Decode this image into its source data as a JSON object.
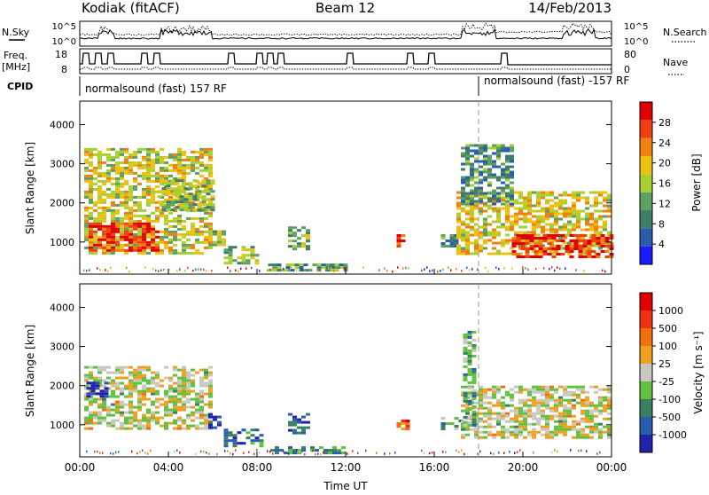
{
  "header": {
    "station": "Kodiak (fitACF)",
    "beam": "Beam 12",
    "date": "14/Feb/2013"
  },
  "params": {
    "nsky_label": "N.Sky",
    "nsearch_label": "N.Search",
    "noise_ticks": [
      "10^5",
      "10^0"
    ],
    "freq_label_1": "Freq.",
    "freq_label_2": "[MHz]",
    "freq_ticks": [
      "18",
      "8"
    ],
    "nave_label": "Nave",
    "nave_ticks": [
      "80",
      "0"
    ],
    "cpid_label": "CPID",
    "cpid_1": "normalsound (fast) 157 RF",
    "cpid_2": "normalsound (fast) -157 RF"
  },
  "colors": {
    "power": [
      "#1a1aff",
      "#2a5cb0",
      "#3f7d6b",
      "#5fa060",
      "#a8d030",
      "#f0c010",
      "#f08010",
      "#f04010",
      "#e00000"
    ],
    "velocity": [
      "#2222aa",
      "#2a5cb0",
      "#3a8060",
      "#60c040",
      "#c8c8c0",
      "#f0a020",
      "#f07010",
      "#f03010",
      "#e00000"
    ]
  },
  "chart_data": [
    {
      "type": "heatmap",
      "panel": "power",
      "ylabel": "Slant Range [km]",
      "yticks": [
        "4000",
        "3000",
        "2000",
        "1000"
      ],
      "ylim": [
        180,
        4600
      ],
      "xlim": [
        0,
        24
      ],
      "xtick_hours": [
        0,
        4,
        8,
        12,
        16,
        20,
        24
      ],
      "colorbar_label": "Power [dB]",
      "colorbar_ticks": [
        "28",
        "24",
        "20",
        "16",
        "12",
        "8",
        "4"
      ],
      "colorbar_range": [
        0,
        30
      ],
      "cpid_change_hour": 18,
      "regions": [
        {
          "t0": 0.2,
          "t1": 6.0,
          "r0": 700,
          "r1": 3400,
          "level": 0.55
        },
        {
          "t0": 0.4,
          "t1": 3.6,
          "r0": 800,
          "r1": 1500,
          "level": 0.9
        },
        {
          "t0": 3.5,
          "t1": 6.0,
          "r0": 1800,
          "r1": 2600,
          "level": 0.45
        },
        {
          "t0": 5.8,
          "t1": 6.5,
          "r0": 900,
          "r1": 1300,
          "level": 0.45
        },
        {
          "t0": 6.5,
          "t1": 8.0,
          "r0": 450,
          "r1": 900,
          "level": 0.45
        },
        {
          "t0": 8.5,
          "t1": 12.0,
          "r0": 250,
          "r1": 450,
          "level": 0.35
        },
        {
          "t0": 9.4,
          "t1": 10.4,
          "r0": 800,
          "r1": 1400,
          "level": 0.4
        },
        {
          "t0": 14.3,
          "t1": 14.7,
          "r0": 900,
          "r1": 1200,
          "level": 0.8
        },
        {
          "t0": 16.3,
          "t1": 17.0,
          "r0": 900,
          "r1": 1200,
          "level": 0.3
        },
        {
          "t0": 17.0,
          "t1": 24.0,
          "r0": 700,
          "r1": 2300,
          "level": 0.6
        },
        {
          "t0": 19.5,
          "t1": 24.0,
          "r0": 650,
          "r1": 1200,
          "level": 0.9
        },
        {
          "t0": 17.2,
          "t1": 19.5,
          "r0": 2000,
          "r1": 3500,
          "level": 0.3
        }
      ]
    },
    {
      "type": "heatmap",
      "panel": "velocity",
      "ylabel": "Slant Range [km]",
      "yticks": [
        "4000",
        "3000",
        "2000",
        "1000"
      ],
      "ylim": [
        180,
        4600
      ],
      "xlim": [
        0,
        24
      ],
      "xtick_labels": [
        "00:00",
        "04:00",
        "08:00",
        "12:00",
        "16:00",
        "20:00",
        "00:00"
      ],
      "xlabel": "Time UT",
      "colorbar_label": "Velocity [m s⁻¹]",
      "colorbar_ticks": [
        "1000",
        "500",
        "100",
        "25",
        "-25",
        "-100",
        "-500",
        "-1000"
      ],
      "colorbar_range": [
        -1000,
        1000
      ],
      "cpid_change_hour": 18,
      "regions": [
        {
          "t0": 0.2,
          "t1": 6.0,
          "r0": 900,
          "r1": 2500,
          "level": 0.5
        },
        {
          "t0": 0.3,
          "t1": 1.2,
          "r0": 1700,
          "r1": 2100,
          "level": 0.05
        },
        {
          "t0": 5.8,
          "t1": 6.6,
          "r0": 900,
          "r1": 1300,
          "level": 0.1
        },
        {
          "t0": 6.5,
          "t1": 8.3,
          "r0": 450,
          "r1": 900,
          "level": 0.25
        },
        {
          "t0": 8.6,
          "t1": 12.0,
          "r0": 250,
          "r1": 450,
          "level": 0.3
        },
        {
          "t0": 9.4,
          "t1": 10.4,
          "r0": 800,
          "r1": 1300,
          "level": 0.15
        },
        {
          "t0": 14.3,
          "t1": 14.8,
          "r0": 900,
          "r1": 1200,
          "level": 0.78
        },
        {
          "t0": 16.3,
          "t1": 17.2,
          "r0": 900,
          "r1": 1200,
          "level": 0.35
        },
        {
          "t0": 17.2,
          "t1": 24.0,
          "r0": 700,
          "r1": 2000,
          "level": 0.5
        },
        {
          "t0": 17.3,
          "t1": 17.9,
          "r0": 1000,
          "r1": 3400,
          "level": 0.35
        }
      ]
    }
  ]
}
